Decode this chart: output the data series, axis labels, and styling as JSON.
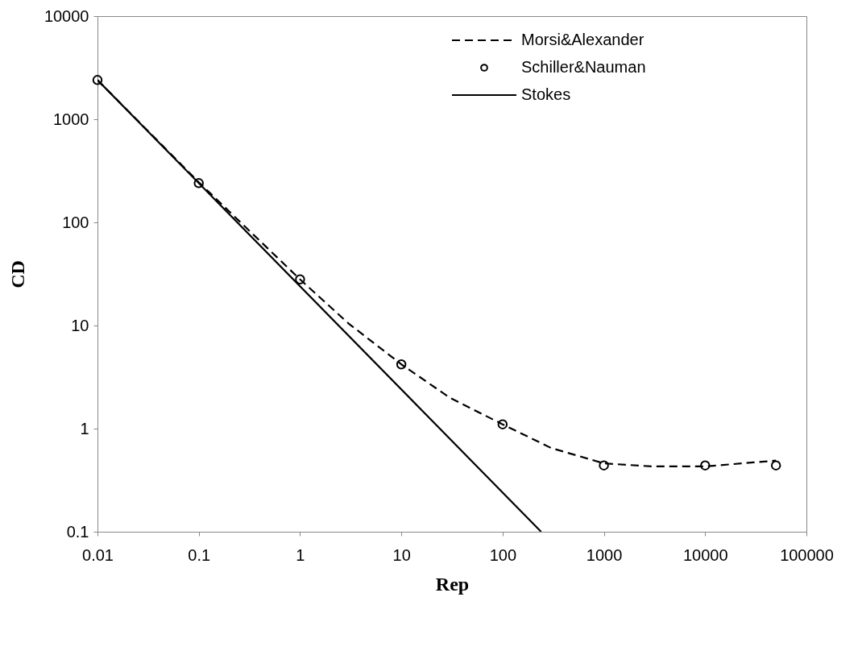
{
  "chart_data": {
    "type": "line",
    "xlabel": "Rep",
    "ylabel": "CD",
    "log": "xy",
    "xlim": [
      0.01,
      100000
    ],
    "xticks": [
      0.01,
      0.1,
      1,
      10,
      100,
      1000,
      10000,
      100000
    ],
    "ylim": [
      0.1,
      10000
    ],
    "yticks": [
      0.1,
      1,
      10,
      100,
      1000,
      10000
    ],
    "grid": false,
    "legend": "top right",
    "series": [
      {
        "name": "Morsi&Alexander",
        "line_style": "dashed",
        "marker": "none",
        "color": "#000000",
        "x": [
          0.01,
          0.1,
          1,
          3,
          10,
          30,
          100,
          300,
          1000,
          3000,
          10000,
          30000,
          50000
        ],
        "values": [
          2400,
          245,
          28,
          10.5,
          4.2,
          2.0,
          1.1,
          0.65,
          0.46,
          0.43,
          0.43,
          0.47,
          0.49
        ]
      },
      {
        "name": "Schiller&Nauman",
        "type": "scatter",
        "marker": "circle",
        "color": "#000000",
        "x": [
          0.01,
          0.1,
          1,
          10,
          100,
          1000,
          10000,
          50000
        ],
        "values": [
          2400,
          240,
          28,
          4.2,
          1.1,
          0.44,
          0.44,
          0.44
        ]
      },
      {
        "name": "Stokes",
        "line_style": "solid",
        "marker": "none",
        "color": "#000000",
        "x": [
          0.01,
          240
        ],
        "values": [
          2400,
          0.1
        ]
      }
    ]
  }
}
